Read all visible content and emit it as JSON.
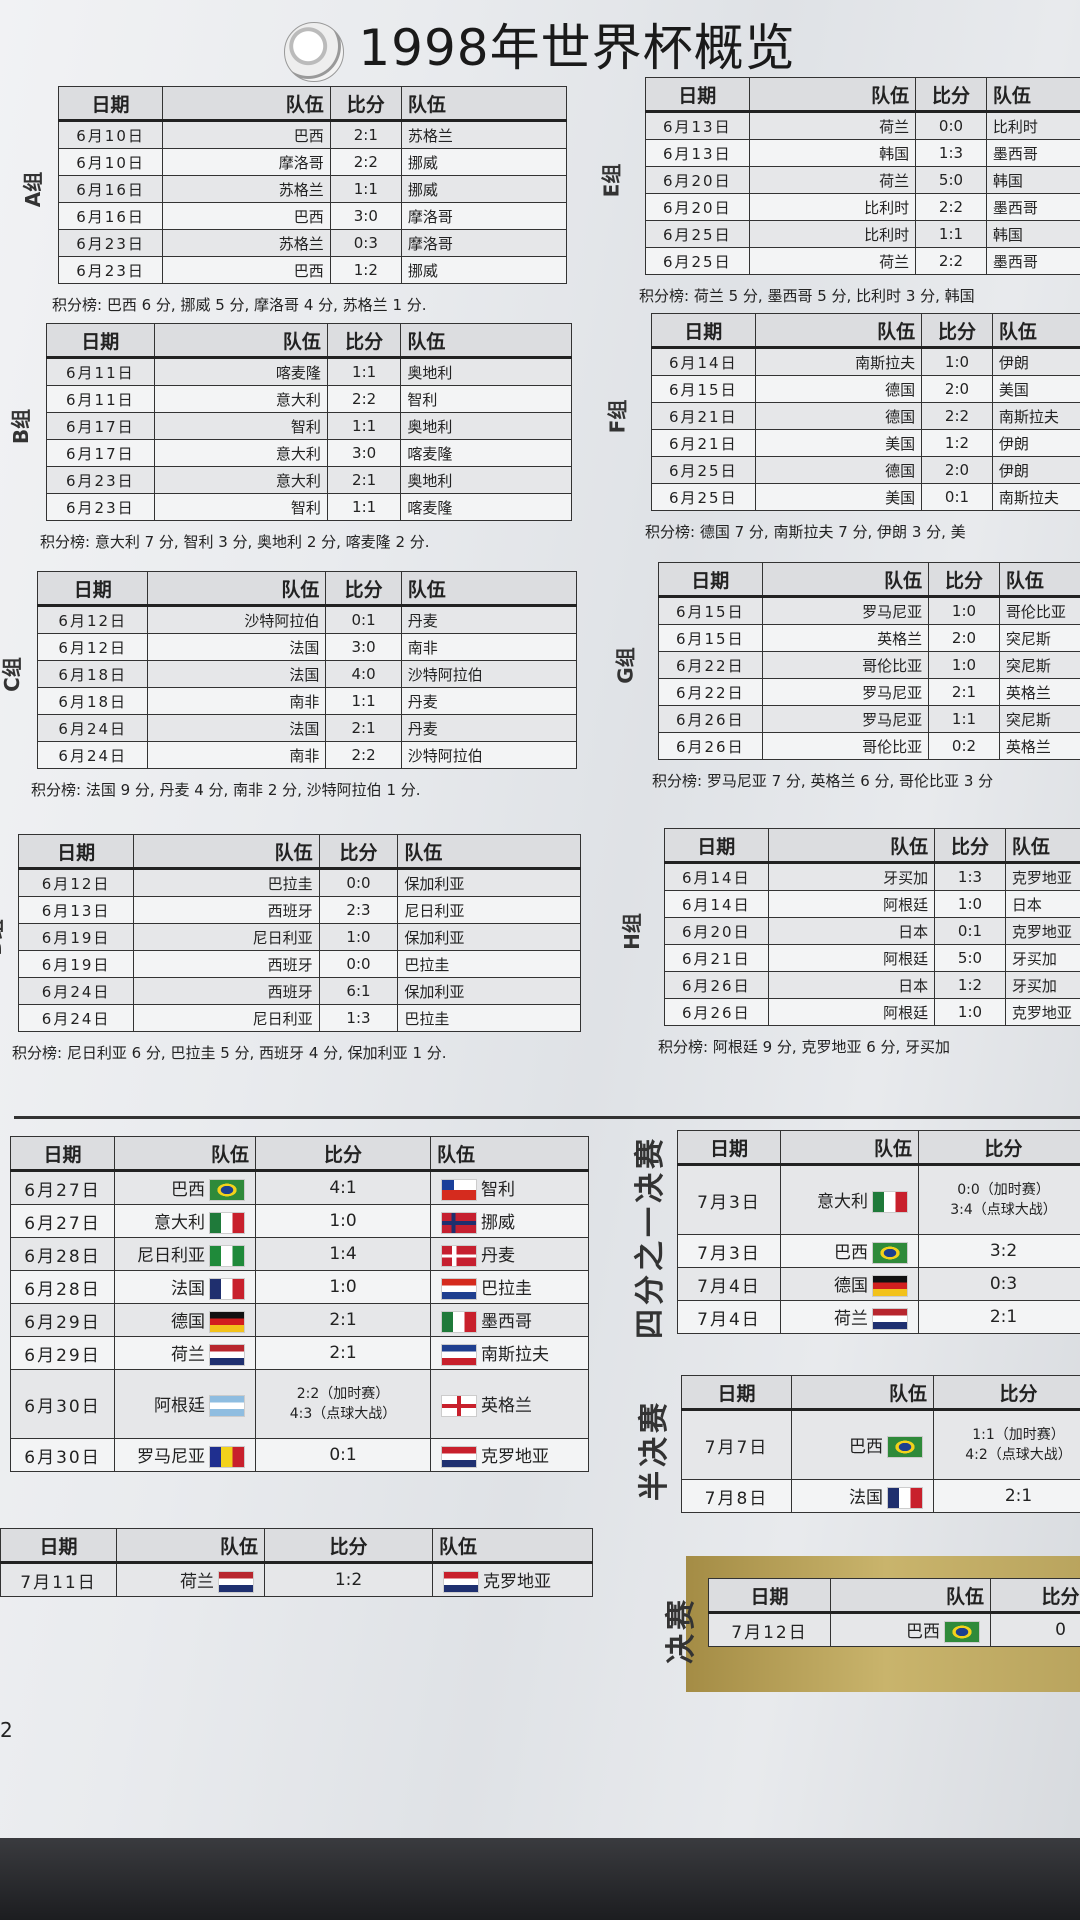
{
  "title": "1998年世界杯概览",
  "headers": [
    "日期",
    "队伍",
    "比分",
    "队伍"
  ],
  "groups": [
    {
      "label": "A组",
      "rows": [
        [
          "6月10日",
          "巴西",
          "2:1",
          "苏格兰"
        ],
        [
          "6月10日",
          "摩洛哥",
          "2:2",
          "挪威"
        ],
        [
          "6月16日",
          "苏格兰",
          "1:1",
          "挪威"
        ],
        [
          "6月16日",
          "巴西",
          "3:0",
          "摩洛哥"
        ],
        [
          "6月23日",
          "苏格兰",
          "0:3",
          "摩洛哥"
        ],
        [
          "6月23日",
          "巴西",
          "1:2",
          "挪威"
        ]
      ],
      "standings": "积分榜: 巴西 6 分, 挪威 5 分, 摩洛哥 4 分, 苏格兰 1 分."
    },
    {
      "label": "B组",
      "rows": [
        [
          "6月11日",
          "喀麦隆",
          "1:1",
          "奥地利"
        ],
        [
          "6月11日",
          "意大利",
          "2:2",
          "智利"
        ],
        [
          "6月17日",
          "智利",
          "1:1",
          "奥地利"
        ],
        [
          "6月17日",
          "意大利",
          "3:0",
          "喀麦隆"
        ],
        [
          "6月23日",
          "意大利",
          "2:1",
          "奥地利"
        ],
        [
          "6月23日",
          "智利",
          "1:1",
          "喀麦隆"
        ]
      ],
      "standings": "积分榜: 意大利 7 分, 智利 3 分, 奥地利 2 分, 喀麦隆 2 分."
    },
    {
      "label": "C组",
      "rows": [
        [
          "6月12日",
          "沙特阿拉伯",
          "0:1",
          "丹麦"
        ],
        [
          "6月12日",
          "法国",
          "3:0",
          "南非"
        ],
        [
          "6月18日",
          "法国",
          "4:0",
          "沙特阿拉伯"
        ],
        [
          "6月18日",
          "南非",
          "1:1",
          "丹麦"
        ],
        [
          "6月24日",
          "法国",
          "2:1",
          "丹麦"
        ],
        [
          "6月24日",
          "南非",
          "2:2",
          "沙特阿拉伯"
        ]
      ],
      "standings": "积分榜: 法国 9 分, 丹麦 4 分, 南非 2 分, 沙特阿拉伯 1 分."
    },
    {
      "label": "D组",
      "rows": [
        [
          "6月12日",
          "巴拉圭",
          "0:0",
          "保加利亚"
        ],
        [
          "6月13日",
          "西班牙",
          "2:3",
          "尼日利亚"
        ],
        [
          "6月19日",
          "尼日利亚",
          "1:0",
          "保加利亚"
        ],
        [
          "6月19日",
          "西班牙",
          "0:0",
          "巴拉圭"
        ],
        [
          "6月24日",
          "西班牙",
          "6:1",
          "保加利亚"
        ],
        [
          "6月24日",
          "尼日利亚",
          "1:3",
          "巴拉圭"
        ]
      ],
      "standings": "积分榜: 尼日利亚 6 分, 巴拉圭 5 分, 西班牙 4 分, 保加利亚 1 分."
    },
    {
      "label": "E组",
      "rows": [
        [
          "6月13日",
          "荷兰",
          "0:0",
          "比利时"
        ],
        [
          "6月13日",
          "韩国",
          "1:3",
          "墨西哥"
        ],
        [
          "6月20日",
          "荷兰",
          "5:0",
          "韩国"
        ],
        [
          "6月20日",
          "比利时",
          "2:2",
          "墨西哥"
        ],
        [
          "6月25日",
          "比利时",
          "1:1",
          "韩国"
        ],
        [
          "6月25日",
          "荷兰",
          "2:2",
          "墨西哥"
        ]
      ],
      "standings": "积分榜: 荷兰 5 分, 墨西哥 5 分, 比利时 3 分, 韩国"
    },
    {
      "label": "F组",
      "rows": [
        [
          "6月14日",
          "南斯拉夫",
          "1:0",
          "伊朗"
        ],
        [
          "6月15日",
          "德国",
          "2:0",
          "美国"
        ],
        [
          "6月21日",
          "德国",
          "2:2",
          "南斯拉夫"
        ],
        [
          "6月21日",
          "美国",
          "1:2",
          "伊朗"
        ],
        [
          "6月25日",
          "德国",
          "2:0",
          "伊朗"
        ],
        [
          "6月25日",
          "美国",
          "0:1",
          "南斯拉夫"
        ]
      ],
      "standings": "积分榜: 德国 7 分, 南斯拉夫 7 分, 伊朗 3 分, 美"
    },
    {
      "label": "G组",
      "rows": [
        [
          "6月15日",
          "罗马尼亚",
          "1:0",
          "哥伦比亚"
        ],
        [
          "6月15日",
          "英格兰",
          "2:0",
          "突尼斯"
        ],
        [
          "6月22日",
          "哥伦比亚",
          "1:0",
          "突尼斯"
        ],
        [
          "6月22日",
          "罗马尼亚",
          "2:1",
          "英格兰"
        ],
        [
          "6月26日",
          "罗马尼亚",
          "1:1",
          "突尼斯"
        ],
        [
          "6月26日",
          "哥伦比亚",
          "0:2",
          "英格兰"
        ]
      ],
      "standings": "积分榜: 罗马尼亚 7 分, 英格兰 6 分, 哥伦比亚 3 分"
    },
    {
      "label": "H组",
      "rows": [
        [
          "6月14日",
          "牙买加",
          "1:3",
          "克罗地亚"
        ],
        [
          "6月14日",
          "阿根廷",
          "1:0",
          "日本"
        ],
        [
          "6月20日",
          "日本",
          "0:1",
          "克罗地亚"
        ],
        [
          "6月21日",
          "阿根廷",
          "5:0",
          "牙买加"
        ],
        [
          "6月26日",
          "日本",
          "1:2",
          "牙买加"
        ],
        [
          "6月26日",
          "阿根廷",
          "1:0",
          "克罗地亚"
        ]
      ],
      "standings": "积分榜: 阿根廷 9 分, 克罗地亚 6 分, 牙买加"
    }
  ],
  "round_of_16": {
    "rows": [
      {
        "date": "6月27日",
        "home": "巴西",
        "home_flag": "brazil",
        "score": "4:1",
        "away": "智利",
        "away_flag": "chile"
      },
      {
        "date": "6月27日",
        "home": "意大利",
        "home_flag": "italy",
        "score": "1:0",
        "away": "挪威",
        "away_flag": "norway"
      },
      {
        "date": "6月28日",
        "home": "尼日利亚",
        "home_flag": "nigeria",
        "score": "1:4",
        "away": "丹麦",
        "away_flag": "denmark"
      },
      {
        "date": "6月28日",
        "home": "法国",
        "home_flag": "france",
        "score": "1:0",
        "away": "巴拉圭",
        "away_flag": "paraguay"
      },
      {
        "date": "6月29日",
        "home": "德国",
        "home_flag": "germany",
        "score": "2:1",
        "away": "墨西哥",
        "away_flag": "mexico"
      },
      {
        "date": "6月29日",
        "home": "荷兰",
        "home_flag": "netherlands",
        "score": "2:1",
        "away": "南斯拉夫",
        "away_flag": "yugoslavia"
      },
      {
        "date": "6月30日",
        "home": "阿根廷",
        "home_flag": "argentina",
        "score": "2:2（加时赛）",
        "score2": "4:3（点球大战）",
        "away": "英格兰",
        "away_flag": "england"
      },
      {
        "date": "6月30日",
        "home": "罗马尼亚",
        "home_flag": "romania",
        "score": "0:1",
        "away": "克罗地亚",
        "away_flag": "croatia"
      }
    ]
  },
  "third_place": {
    "rows": [
      {
        "date": "7月11日",
        "home": "荷兰",
        "home_flag": "netherlands",
        "score": "1:2",
        "away": "克罗地亚",
        "away_flag": "croatia"
      }
    ]
  },
  "quarter_finals": {
    "label": "四分之一决赛",
    "rows": [
      {
        "date": "7月3日",
        "home": "意大利",
        "home_flag": "italy",
        "score": "0:0（加时赛）",
        "score2": "3:4（点球大战）"
      },
      {
        "date": "7月3日",
        "home": "巴西",
        "home_flag": "brazil",
        "score": "3:2"
      },
      {
        "date": "7月4日",
        "home": "德国",
        "home_flag": "germany",
        "score": "0:3"
      },
      {
        "date": "7月4日",
        "home": "荷兰",
        "home_flag": "netherlands",
        "score": "2:1"
      }
    ]
  },
  "semi_finals": {
    "label": "半决赛",
    "rows": [
      {
        "date": "7月7日",
        "home": "巴西",
        "home_flag": "brazil",
        "score": "1:1（加时赛）",
        "score2": "4:2（点球大战）"
      },
      {
        "date": "7月8日",
        "home": "法国",
        "home_flag": "france",
        "score": "2:1"
      }
    ]
  },
  "final": {
    "label": "决赛",
    "accent": "#b9a45e",
    "rows": [
      {
        "date": "7月12日",
        "home": "巴西",
        "home_flag": "brazil",
        "score": "0"
      }
    ]
  },
  "page_number": "2"
}
